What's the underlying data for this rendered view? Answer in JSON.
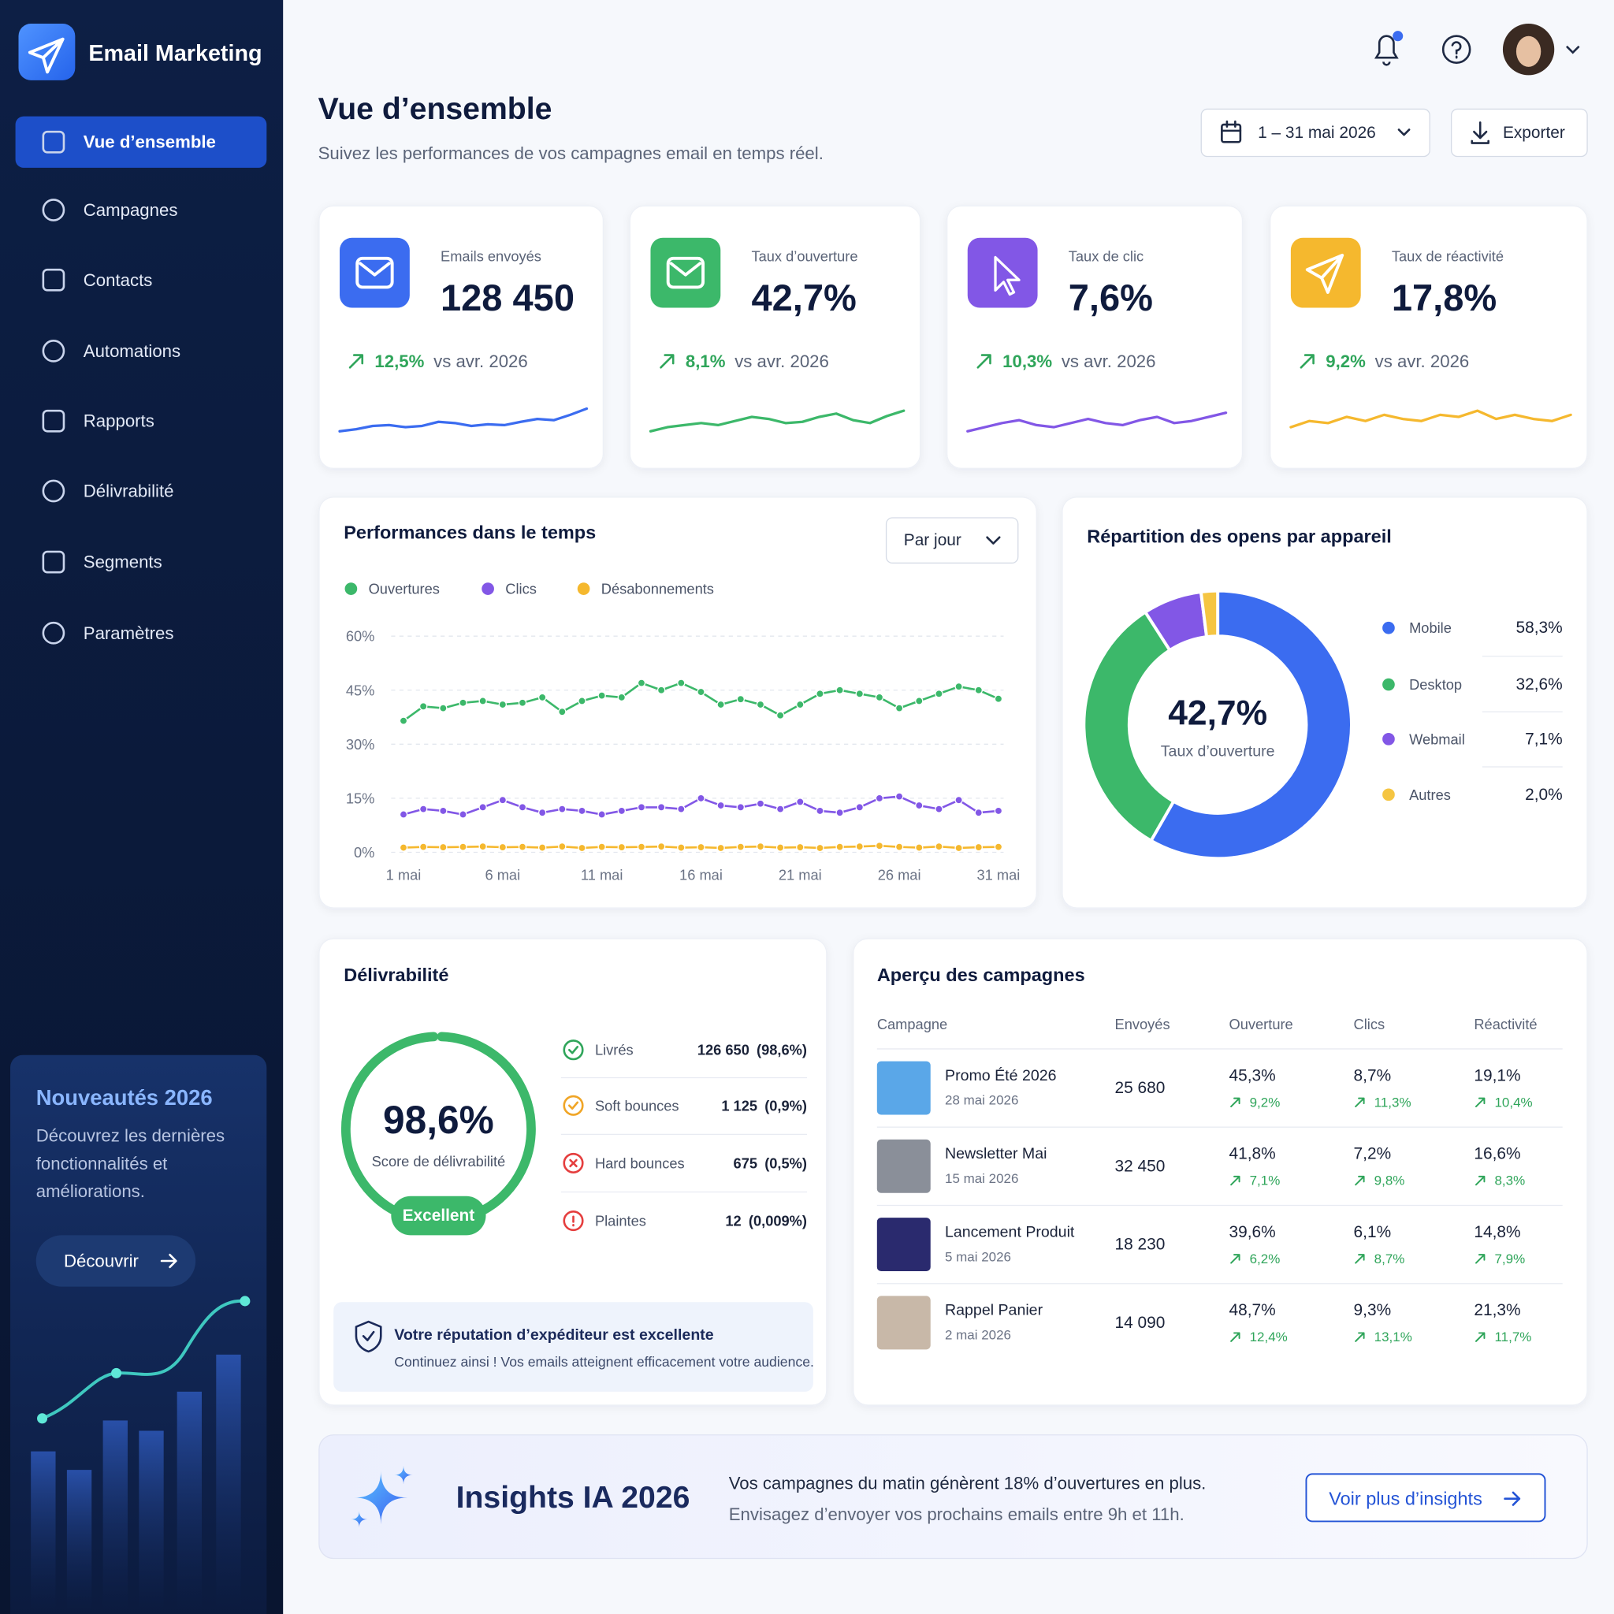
{
  "sidebar": {
    "brand": "Email Marketing",
    "nav": [
      "Vue d’ensemble",
      "Campagnes",
      "Contacts",
      "Automations",
      "Rapports",
      "Délivrabilité",
      "Segments",
      "Paramètres"
    ],
    "promo": {
      "title": "Nouveautés 2026",
      "text": "Découvrez les dernières fonctionnalités et améliorations.",
      "button": "Découvrir"
    }
  },
  "header": {
    "title": "Vue d’ensemble",
    "subtitle": "Suivez les performances de vos campagnes email en temps réel.",
    "date_range": "1 – 31 mai 2026",
    "export": "Exporter"
  },
  "kpis": [
    {
      "label": "Emails envoyés",
      "value": "128 450",
      "change": "12,5%",
      "comparison": "vs avr. 2026",
      "color": "#3b6cf0",
      "sparkline": [
        1.5,
        2,
        2.8,
        3,
        2.5,
        2.8,
        3.8,
        3.5,
        2.8,
        3.2,
        3,
        3.8,
        4.5,
        4.2,
        5.5,
        7
      ]
    },
    {
      "label": "Taux d’ouverture",
      "value": "42,7%",
      "change": "8,1%",
      "comparison": "vs avr. 2026",
      "color": "#3cb86a",
      "sparkline": [
        1.5,
        2.5,
        3,
        3.5,
        3,
        4,
        5,
        4.5,
        3.5,
        3.8,
        5,
        5.8,
        4.2,
        3.5,
        5.2,
        6.5
      ]
    },
    {
      "label": "Taux de clic",
      "value": "7,6%",
      "change": "10,3%",
      "comparison": "vs avr. 2026",
      "color": "#8257e6",
      "sparkline": [
        1.5,
        2.5,
        3.5,
        4.2,
        3,
        2.5,
        3.5,
        4.5,
        3.5,
        3,
        4.2,
        5,
        3.5,
        4,
        5,
        6
      ]
    },
    {
      "label": "Taux de réactivité",
      "value": "17,8%",
      "change": "9,2%",
      "comparison": "vs avr. 2026",
      "color": "#f5b82e",
      "sparkline": [
        2.5,
        4,
        3.5,
        5,
        4,
        5.5,
        4.5,
        4,
        5.5,
        5,
        6.5,
        4.5,
        5.5,
        4.5,
        4,
        5.5
      ]
    }
  ],
  "performance_chart": {
    "type": "line",
    "title": "Performances dans le temps",
    "dropdown": "Par jour",
    "categories": [
      "1 mai",
      null,
      null,
      null,
      null,
      "6 mai",
      null,
      null,
      null,
      null,
      "11 mai",
      null,
      null,
      null,
      null,
      "16 mai",
      null,
      null,
      null,
      null,
      "21 mai",
      null,
      null,
      null,
      null,
      "26 mai",
      null,
      null,
      null,
      null,
      "31 mai"
    ],
    "series": [
      {
        "name": "Ouvertures",
        "color": "#3cb86a",
        "values": [
          36.5,
          40.5,
          40,
          41.5,
          42,
          41,
          41.5,
          43,
          39,
          42,
          43.5,
          43,
          47,
          45,
          47,
          44.5,
          41,
          42.5,
          41,
          38,
          41,
          44,
          45,
          44,
          43,
          40,
          42,
          44,
          46,
          45,
          42.6
        ]
      },
      {
        "name": "Clics",
        "color": "#8257e6",
        "values": [
          10.5,
          12,
          11.5,
          10.5,
          12.5,
          14.5,
          12.5,
          11,
          12,
          11.5,
          10.5,
          11.5,
          12.5,
          12.5,
          12,
          15,
          13,
          12.5,
          13.5,
          12,
          14,
          11.5,
          11,
          12.5,
          15,
          15.5,
          13,
          12,
          14.5,
          11,
          11.5
        ]
      },
      {
        "name": "Désabonnements",
        "color": "#f5b82e",
        "values": [
          1.3,
          1.5,
          1.4,
          1.5,
          1.6,
          1.4,
          1.5,
          1.3,
          1.6,
          1.2,
          1.5,
          1.4,
          1.5,
          1.6,
          1.3,
          1.4,
          1.2,
          1.5,
          1.6,
          1.3,
          1.4,
          1.2,
          1.5,
          1.6,
          1.8,
          1.5,
          1.3,
          1.6,
          1.2,
          1.4,
          1.5
        ]
      }
    ],
    "ylim": [
      0,
      60
    ],
    "yticks": [
      {
        "value": 0,
        "label": "0%"
      },
      {
        "value": 15,
        "label": "15%"
      },
      {
        "value": 30,
        "label": "30%"
      },
      {
        "value": 45,
        "label": "45%"
      },
      {
        "value": 60,
        "label": "60%"
      }
    ],
    "grid": true
  },
  "device_chart": {
    "type": "donut",
    "title": "Répartition des opens par appareil",
    "center_value": "42,7%",
    "center_label": "Taux d’ouverture",
    "categories": [
      "Mobile",
      "Desktop",
      "Webmail",
      "Autres"
    ],
    "values": [
      58.3,
      32.6,
      7.1,
      2.0
    ],
    "value_labels": [
      "58,3%",
      "32,6%",
      "7,1%",
      "2,0%"
    ],
    "colors": [
      "#3b6cf0",
      "#3cb86a",
      "#8257e6",
      "#f5c542"
    ]
  },
  "deliverability": {
    "title": "Délivrabilité",
    "score": 98.6,
    "score_label": "98,6%",
    "score_caption": "Score de délivrabilité",
    "rating": "Excellent",
    "items": [
      {
        "label": "Livrés",
        "count": "126 650",
        "share": "(98,6%)",
        "color": "#2fa55a"
      },
      {
        "label": "Soft bounces",
        "count": "1 125",
        "share": "(0,9%)",
        "color": "#f0a526"
      },
      {
        "label": "Hard bounces",
        "count": "675",
        "share": "(0,5%)",
        "color": "#e53e3e"
      },
      {
        "label": "Plaintes",
        "count": "12",
        "share": "(0,009%)",
        "color": "#e53e3e"
      }
    ],
    "reputation": {
      "title": "Votre réputation d’expéditeur est excellente",
      "text": "Continuez ainsi ! Vos emails atteignent efficacement votre audience."
    }
  },
  "campaigns": {
    "title": "Aperçu des campagnes",
    "columns": [
      "Campagne",
      "Envoyés",
      "Ouverture",
      "Clics",
      "Réactivité"
    ],
    "rows": [
      {
        "name": "Promo Été 2026",
        "date": "28 mai 2026",
        "sent": "25 680",
        "open": "45,3%",
        "open_change": "9,2%",
        "clicks": "8,7%",
        "clicks_change": "11,3%",
        "reactivity": "19,1%",
        "reactivity_change": "10,4%"
      },
      {
        "name": "Newsletter Mai",
        "date": "15 mai 2026",
        "sent": "32 450",
        "open": "41,8%",
        "open_change": "7,1%",
        "clicks": "7,2%",
        "clicks_change": "9,8%",
        "reactivity": "16,6%",
        "reactivity_change": "8,3%"
      },
      {
        "name": "Lancement Produit",
        "date": "5 mai 2026",
        "sent": "18 230",
        "open": "39,6%",
        "open_change": "6,2%",
        "clicks": "6,1%",
        "clicks_change": "8,7%",
        "reactivity": "14,8%",
        "reactivity_change": "7,9%"
      },
      {
        "name": "Rappel Panier",
        "date": "2 mai 2026",
        "sent": "14 090",
        "open": "48,7%",
        "open_change": "12,4%",
        "clicks": "9,3%",
        "clicks_change": "13,1%",
        "reactivity": "21,3%",
        "reactivity_change": "11,7%"
      }
    ]
  },
  "insights": {
    "title": "Insights IA 2026",
    "line1": "Vos campagnes du matin génèrent 18% d’ouvertures en plus.",
    "line2": "Envisagez d’envoyer vos prochains emails entre 9h et 11h.",
    "button": "Voir plus d’insights"
  }
}
